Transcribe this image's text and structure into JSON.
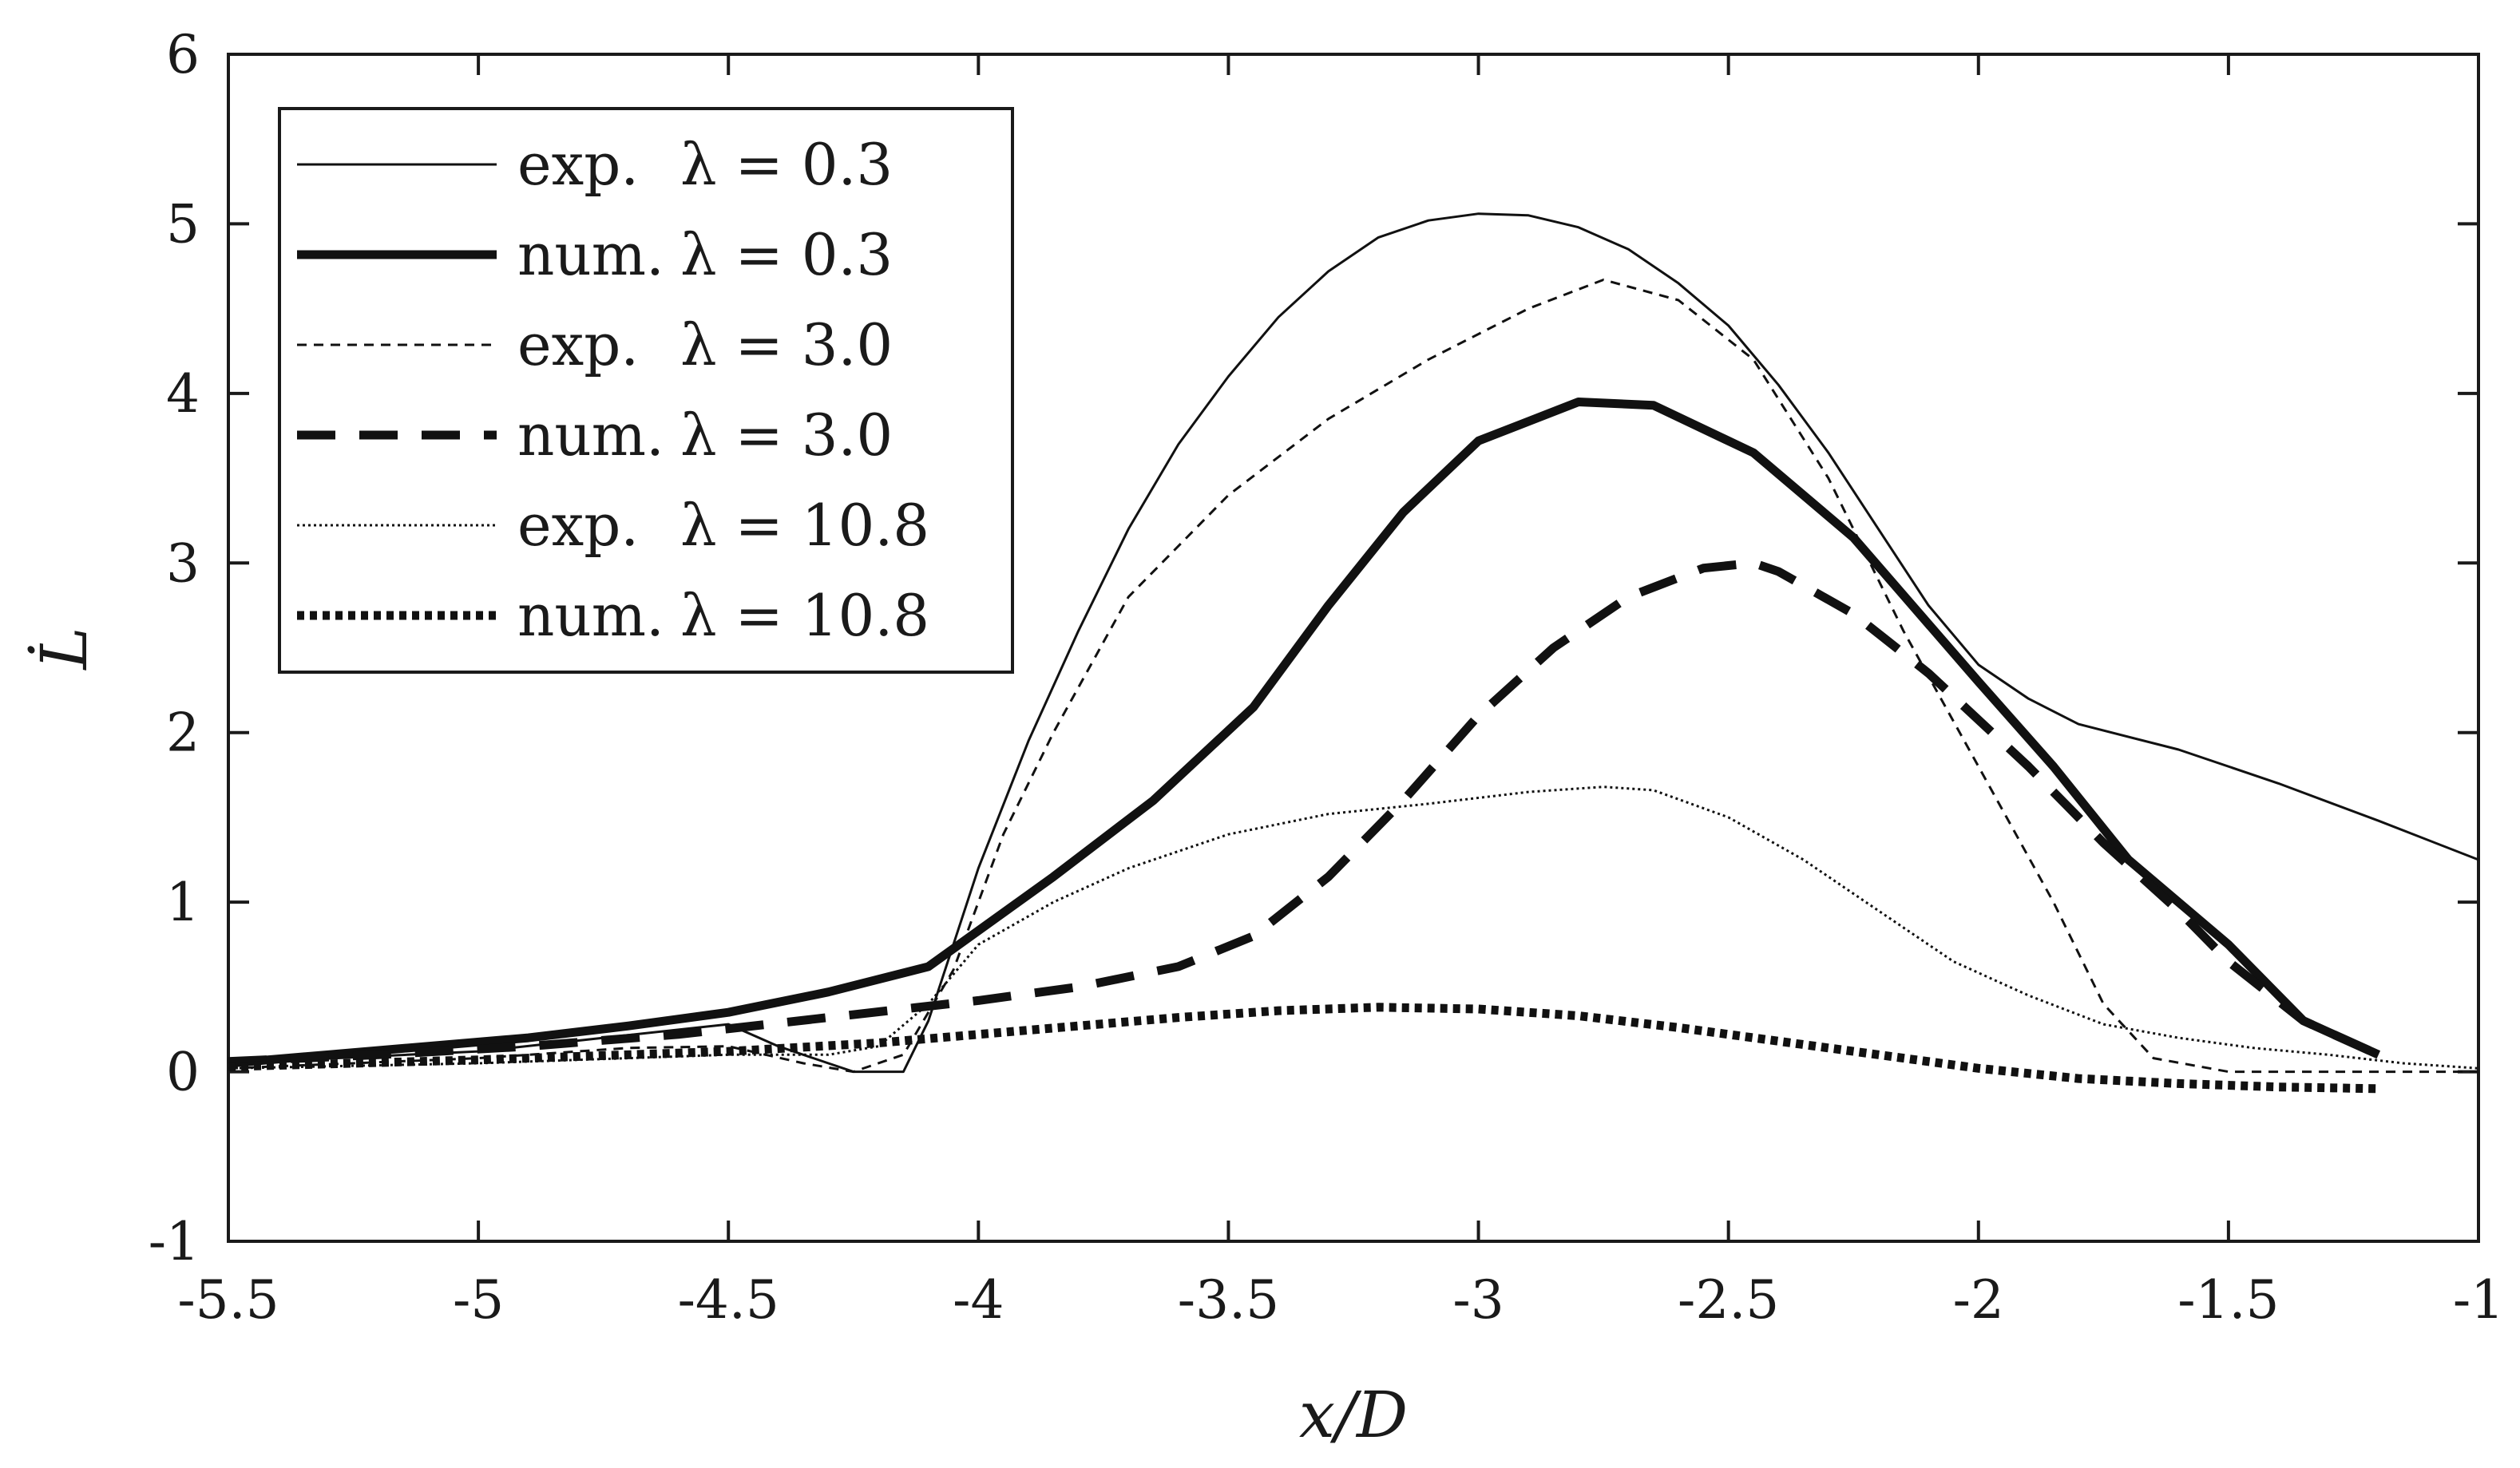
{
  "chart_data": {
    "type": "line",
    "xlabel": "x/D",
    "ylabel": "L̇",
    "xlim": [
      -5.5,
      -1
    ],
    "ylim": [
      -1,
      6
    ],
    "xticks": [
      -5.5,
      -5,
      -4.5,
      -4,
      -3.5,
      -3,
      -2.5,
      -2,
      -1.5,
      -1
    ],
    "xtick_labels": [
      "-5.5",
      "-5",
      "-4.5",
      "-4",
      "-3.5",
      "-3",
      "-2.5",
      "-2",
      "-1.5",
      "-1"
    ],
    "yticks": [
      -1,
      0,
      1,
      2,
      3,
      4,
      5,
      6
    ],
    "ytick_labels": [
      "-1",
      "0",
      "1",
      "2",
      "3",
      "4",
      "5",
      "6"
    ],
    "grid": false,
    "legend_position": "top-left",
    "series": [
      {
        "name": "exp. λ = 0.3",
        "legend_prefix": "exp.",
        "legend_param": "λ = 0.3",
        "style": "solid-thin",
        "x": [
          -5.5,
          -5.0,
          -4.75,
          -4.5,
          -4.4,
          -4.3,
          -4.25,
          -4.15,
          -4.1,
          -4.0,
          -3.9,
          -3.8,
          -3.7,
          -3.6,
          -3.5,
          -3.4,
          -3.3,
          -3.2,
          -3.1,
          -3.0,
          -2.9,
          -2.8,
          -2.7,
          -2.6,
          -2.5,
          -2.4,
          -2.3,
          -2.2,
          -2.1,
          -2.0,
          -1.9,
          -1.8,
          -1.6,
          -1.4,
          -1.2,
          -1.0
        ],
        "y": [
          0.05,
          0.12,
          0.2,
          0.28,
          0.15,
          0.05,
          0.0,
          0.0,
          0.3,
          1.2,
          1.95,
          2.6,
          3.2,
          3.7,
          4.1,
          4.45,
          4.72,
          4.92,
          5.02,
          5.06,
          5.05,
          4.98,
          4.85,
          4.65,
          4.4,
          4.05,
          3.65,
          3.2,
          2.75,
          2.4,
          2.2,
          2.05,
          1.9,
          1.7,
          1.48,
          1.25
        ]
      },
      {
        "name": "num. λ = 0.3",
        "legend_prefix": "num.",
        "legend_param": "λ = 0.3",
        "style": "solid-thick",
        "x": [
          -5.5,
          -5.3,
          -5.1,
          -4.9,
          -4.7,
          -4.5,
          -4.3,
          -4.1,
          -3.85,
          -3.65,
          -3.45,
          -3.3,
          -3.15,
          -3.0,
          -2.8,
          -2.65,
          -2.45,
          -2.25,
          -2.0,
          -1.85,
          -1.7,
          -1.5,
          -1.35,
          -1.2
        ],
        "y": [
          0.05,
          0.1,
          0.15,
          0.2,
          0.27,
          0.35,
          0.47,
          0.62,
          1.15,
          1.6,
          2.15,
          2.75,
          3.3,
          3.72,
          3.95,
          3.93,
          3.65,
          3.15,
          2.3,
          1.8,
          1.25,
          0.75,
          0.3,
          0.1
        ]
      },
      {
        "name": "exp. λ = 3.0",
        "legend_prefix": "exp.",
        "legend_param": "λ = 3.0",
        "style": "dashed-thin",
        "x": [
          -5.5,
          -5.0,
          -4.7,
          -4.5,
          -4.35,
          -4.25,
          -4.15,
          -4.05,
          -3.95,
          -3.85,
          -3.7,
          -3.5,
          -3.3,
          -3.1,
          -2.9,
          -2.75,
          -2.6,
          -2.45,
          -2.3,
          -2.15,
          -2.0,
          -1.85,
          -1.75,
          -1.65,
          -1.5,
          -1.3,
          -1.0
        ],
        "y": [
          0.02,
          0.08,
          0.14,
          0.15,
          0.05,
          0.0,
          0.1,
          0.6,
          1.4,
          2.0,
          2.8,
          3.4,
          3.85,
          4.2,
          4.5,
          4.67,
          4.55,
          4.2,
          3.5,
          2.6,
          1.8,
          1.0,
          0.4,
          0.08,
          0.0,
          0.0,
          0.0
        ]
      },
      {
        "name": "num. λ = 3.0",
        "legend_prefix": "num.",
        "legend_param": "λ = 3.0",
        "style": "dashed-thick",
        "x": [
          -5.5,
          -5.2,
          -4.9,
          -4.6,
          -4.3,
          -4.0,
          -3.8,
          -3.6,
          -3.45,
          -3.3,
          -3.15,
          -3.0,
          -2.85,
          -2.7,
          -2.55,
          -2.45,
          -2.4,
          -2.25,
          -2.1,
          -1.9,
          -1.75,
          -1.6,
          -1.5,
          -1.35,
          -1.2
        ],
        "y": [
          0.06,
          0.1,
          0.15,
          0.22,
          0.32,
          0.42,
          0.5,
          0.62,
          0.8,
          1.15,
          1.6,
          2.1,
          2.5,
          2.8,
          2.97,
          3.0,
          2.95,
          2.7,
          2.35,
          1.8,
          1.35,
          0.95,
          0.65,
          0.3,
          0.1
        ]
      },
      {
        "name": "exp. λ = 10.8",
        "legend_prefix": "exp.",
        "legend_param": "λ = 10.8",
        "style": "dotted-thin",
        "x": [
          -5.5,
          -5.0,
          -4.5,
          -4.3,
          -4.2,
          -4.1,
          -4.0,
          -3.85,
          -3.7,
          -3.5,
          -3.3,
          -3.1,
          -2.9,
          -2.75,
          -2.65,
          -2.5,
          -2.35,
          -2.2,
          -2.05,
          -1.9,
          -1.75,
          -1.6,
          -1.45,
          -1.3,
          -1.15,
          -1.0
        ],
        "y": [
          0.02,
          0.05,
          0.1,
          0.1,
          0.15,
          0.4,
          0.75,
          1.0,
          1.2,
          1.4,
          1.52,
          1.58,
          1.65,
          1.68,
          1.66,
          1.5,
          1.25,
          0.95,
          0.65,
          0.45,
          0.28,
          0.2,
          0.14,
          0.1,
          0.05,
          0.02
        ]
      },
      {
        "name": "num. λ = 10.8",
        "legend_prefix": "num.",
        "legend_param": "λ = 10.8",
        "style": "dotted-thick",
        "x": [
          -5.5,
          -5.0,
          -4.5,
          -4.2,
          -4.0,
          -3.8,
          -3.6,
          -3.4,
          -3.2,
          -3.0,
          -2.8,
          -2.6,
          -2.4,
          -2.2,
          -2.0,
          -1.8,
          -1.6,
          -1.4,
          -1.2
        ],
        "y": [
          0.03,
          0.07,
          0.12,
          0.17,
          0.22,
          0.27,
          0.32,
          0.36,
          0.38,
          0.37,
          0.33,
          0.26,
          0.18,
          0.1,
          0.02,
          -0.04,
          -0.07,
          -0.09,
          -0.1
        ]
      }
    ]
  }
}
